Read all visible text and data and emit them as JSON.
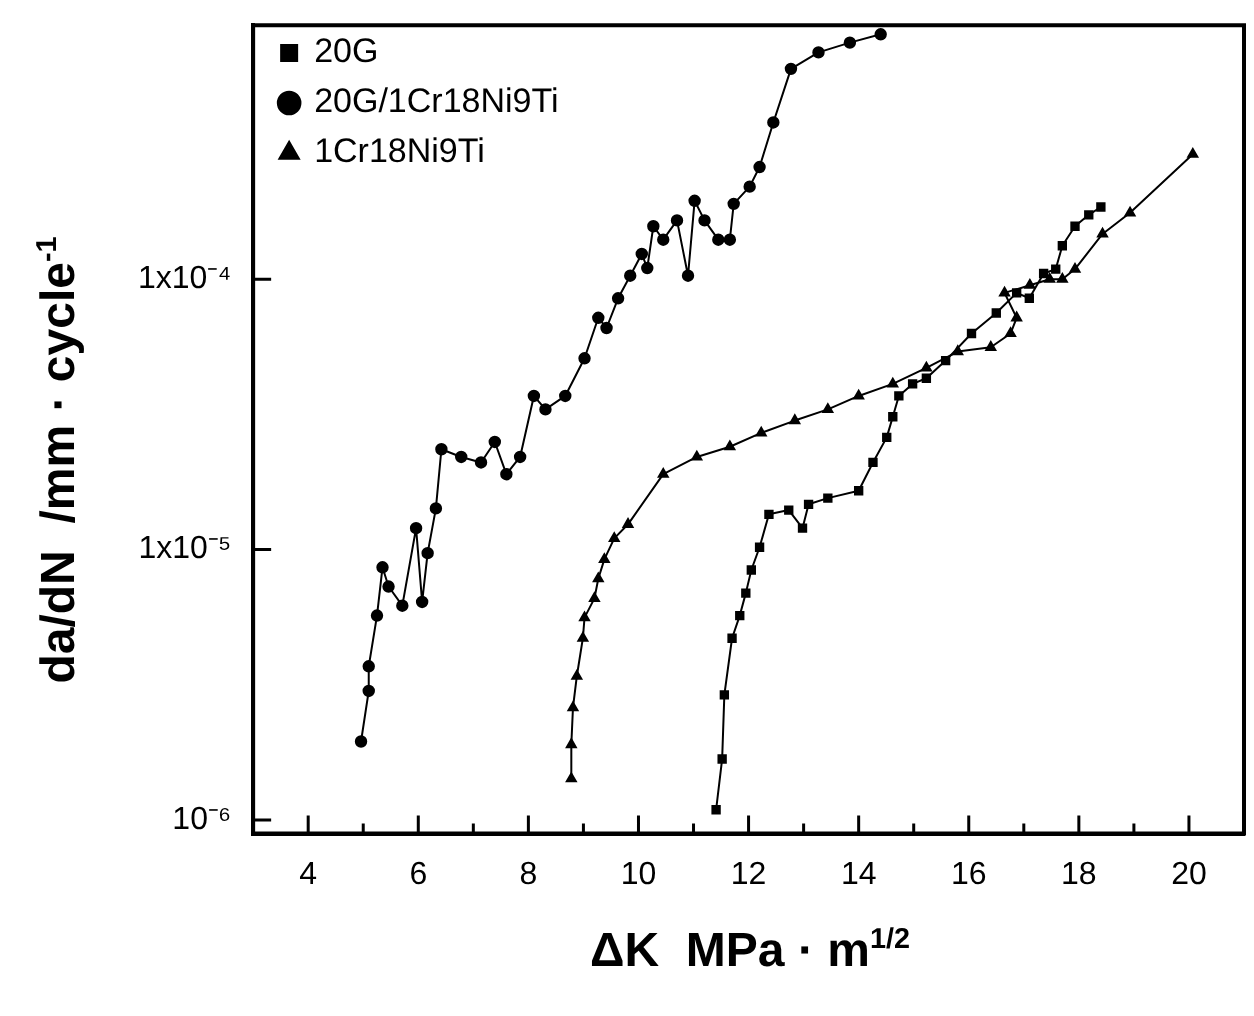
{
  "chart_data": {
    "type": "line",
    "xlabel": "ΔK  MPa · m$^{1/2}$",
    "ylabel": "da/dN  /mm · cycle$^{-1}$",
    "log": "y",
    "xlim": [
      3,
      21
    ],
    "ylim": [
      8.9e-07,
      0.00087
    ],
    "xticks": [
      4,
      {
        "value": 5,
        "label": null
      },
      6,
      {
        "value": 7,
        "label": null
      },
      8,
      {
        "value": 9,
        "label": null
      },
      10,
      {
        "value": 11,
        "label": null
      },
      12,
      {
        "value": 13,
        "label": null
      },
      14,
      {
        "value": 15,
        "label": null
      },
      16,
      {
        "value": 17,
        "label": null
      },
      18,
      {
        "value": 19,
        "label": null
      },
      20
    ],
    "yticks": [
      {
        "value": 1e-06,
        "label": "10⁻⁶"
      },
      {
        "value": 1e-05,
        "label": "1x10⁻⁵"
      },
      {
        "value": 0.0001,
        "label": "1x10⁻⁴"
      }
    ],
    "legend": "top left",
    "grid": false,
    "series": [
      {
        "name": "20G",
        "color": "#000000",
        "marker": "square",
        "x": [
          11.41,
          11.52,
          11.56,
          11.7,
          11.84,
          11.95,
          12.05,
          12.2,
          12.37,
          12.73,
          12.98,
          13.09,
          13.44,
          14.0,
          14.26,
          14.51,
          14.62,
          14.73,
          14.98,
          15.23,
          15.58,
          16.05,
          16.5,
          16.87,
          17.1,
          17.36,
          17.58,
          17.7,
          17.93,
          18.18,
          18.4
        ],
        "values": [
          1.09e-06,
          1.68e-06,
          2.9e-06,
          4.7e-06,
          5.7e-06,
          6.9e-06,
          8.4e-06,
          1.02e-05,
          1.35e-05,
          1.4e-05,
          1.2e-05,
          1.47e-05,
          1.55e-05,
          1.65e-05,
          2.1e-05,
          2.6e-05,
          3.1e-05,
          3.7e-05,
          4.1e-05,
          4.3e-05,
          5e-05,
          6.3e-05,
          7.5e-05,
          8.9e-05,
          8.5e-05,
          0.000105,
          0.000109,
          0.000133,
          0.000157,
          0.000173,
          0.000185
        ]
      },
      {
        "name": "20G/1Cr18Ni9Ti",
        "color": "#000000",
        "marker": "circle",
        "x": [
          4.96,
          5.1,
          5.1,
          5.25,
          5.35,
          5.46,
          5.71,
          5.96,
          6.07,
          6.17,
          6.32,
          6.42,
          6.78,
          7.14,
          7.39,
          7.6,
          7.85,
          8.1,
          8.31,
          8.67,
          9.02,
          9.27,
          9.42,
          9.63,
          9.85,
          10.06,
          10.16,
          10.27,
          10.45,
          10.7,
          10.9,
          11.02,
          11.2,
          11.45,
          11.66,
          11.73,
          12.02,
          12.2,
          12.45,
          12.77,
          13.27,
          13.84,
          14.4
        ],
        "values": [
          1.95e-06,
          3e-06,
          3.7e-06,
          5.7e-06,
          8.6e-06,
          7.3e-06,
          6.2e-06,
          1.2e-05,
          6.4e-06,
          9.7e-06,
          1.42e-05,
          2.35e-05,
          2.2e-05,
          2.1e-05,
          2.5e-05,
          1.9e-05,
          2.2e-05,
          3.7e-05,
          3.3e-05,
          3.7e-05,
          5.1e-05,
          7.2e-05,
          6.6e-05,
          8.5e-05,
          0.000103,
          0.000124,
          0.00011,
          0.000157,
          0.00014,
          0.000165,
          0.000103,
          0.000195,
          0.000165,
          0.00014,
          0.00014,
          0.00019,
          0.00022,
          0.00026,
          0.00038,
          0.0006,
          0.00069,
          0.00075,
          0.000805
        ]
      },
      {
        "name": "1Cr18Ni9Ti",
        "color": "#000000",
        "marker": "triangle",
        "x": [
          8.78,
          8.78,
          8.81,
          8.88,
          8.99,
          9.02,
          9.2,
          9.27,
          9.38,
          9.56,
          9.81,
          10.45,
          11.06,
          11.66,
          12.23,
          12.84,
          13.44,
          14.0,
          14.62,
          15.23,
          15.8,
          16.4,
          16.76,
          16.87,
          16.65,
          17.11,
          17.47,
          17.7,
          17.93,
          18.43,
          18.93,
          20.07
        ],
        "values": [
          1.42e-06,
          1.9e-06,
          2.6e-06,
          3.4e-06,
          4.7e-06,
          5.6e-06,
          6.6e-06,
          7.8e-06,
          9.2e-06,
          1.1e-05,
          1.24e-05,
          1.9e-05,
          2.2e-05,
          2.4e-05,
          2.7e-05,
          3e-05,
          3.3e-05,
          3.7e-05,
          4.1e-05,
          4.7e-05,
          5.4e-05,
          5.6e-05,
          6.3e-05,
          7.2e-05,
          8.9e-05,
          9.5e-05,
          0.0001,
          0.0001,
          0.000109,
          0.000147,
          0.000176,
          0.00029
        ]
      }
    ]
  }
}
